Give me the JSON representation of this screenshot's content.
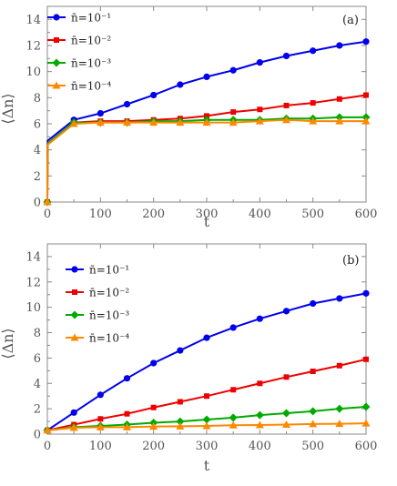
{
  "chart_data": [
    {
      "type": "line",
      "panel_label": "(a)",
      "xlabel": "t",
      "ylabel": "⟨Δn⟩",
      "xlim": [
        0,
        600
      ],
      "ylim": [
        0,
        15
      ],
      "xticks": [
        0,
        100,
        200,
        300,
        400,
        500,
        600
      ],
      "yticks": [
        0,
        2,
        4,
        6,
        8,
        10,
        12,
        14
      ],
      "grid": false,
      "legend": "top-left",
      "series": [
        {
          "name": "n̄=10⁻¹",
          "color": "#0000ee",
          "marker": "circle",
          "x": [
            0,
            0.5,
            50,
            100,
            150,
            200,
            250,
            300,
            350,
            400,
            450,
            500,
            550,
            600
          ],
          "y": [
            0,
            4.7,
            6.3,
            6.8,
            7.5,
            8.2,
            9.0,
            9.6,
            10.1,
            10.7,
            11.2,
            11.6,
            12.0,
            12.3
          ]
        },
        {
          "name": "n̄=10⁻²",
          "color": "#ee0000",
          "marker": "square",
          "x": [
            0,
            0.5,
            50,
            100,
            150,
            200,
            250,
            300,
            350,
            400,
            450,
            500,
            550,
            600
          ],
          "y": [
            0,
            4.5,
            6.1,
            6.2,
            6.2,
            6.3,
            6.4,
            6.6,
            6.9,
            7.1,
            7.4,
            7.6,
            7.9,
            8.2
          ]
        },
        {
          "name": "n̄=10⁻³",
          "color": "#00aa00",
          "marker": "diamond",
          "x": [
            0,
            0.5,
            50,
            100,
            150,
            200,
            250,
            300,
            350,
            400,
            450,
            500,
            550,
            600
          ],
          "y": [
            0,
            4.5,
            6.1,
            6.1,
            6.1,
            6.2,
            6.2,
            6.3,
            6.3,
            6.3,
            6.4,
            6.4,
            6.5,
            6.5
          ]
        },
        {
          "name": "n̄=10⁻⁴",
          "color": "#ff8800",
          "marker": "triangle",
          "x": [
            0,
            0.5,
            50,
            100,
            150,
            200,
            250,
            300,
            350,
            400,
            450,
            500,
            550,
            600
          ],
          "y": [
            0,
            4.4,
            6.0,
            6.1,
            6.1,
            6.1,
            6.1,
            6.1,
            6.1,
            6.2,
            6.3,
            6.2,
            6.2,
            6.2
          ]
        }
      ]
    },
    {
      "type": "line",
      "panel_label": "(b)",
      "xlabel": "t",
      "ylabel": "⟨Δn⟩",
      "xlim": [
        0,
        600
      ],
      "ylim": [
        0,
        15
      ],
      "xticks": [
        0,
        100,
        200,
        300,
        400,
        500,
        600
      ],
      "yticks": [
        0,
        2,
        4,
        6,
        8,
        10,
        12,
        14
      ],
      "grid": false,
      "legend": "top-left",
      "series": [
        {
          "name": "n̄=10⁻¹",
          "color": "#0000ee",
          "marker": "circle",
          "x": [
            0,
            50,
            100,
            150,
            200,
            250,
            300,
            350,
            400,
            450,
            500,
            550,
            600
          ],
          "y": [
            0.3,
            1.7,
            3.1,
            4.4,
            5.6,
            6.6,
            7.6,
            8.4,
            9.1,
            9.7,
            10.3,
            10.7,
            11.1
          ]
        },
        {
          "name": "n̄=10⁻²",
          "color": "#ee0000",
          "marker": "square",
          "x": [
            0,
            50,
            100,
            150,
            200,
            250,
            300,
            350,
            400,
            450,
            500,
            550,
            600
          ],
          "y": [
            0.3,
            0.75,
            1.2,
            1.6,
            2.1,
            2.55,
            3.0,
            3.5,
            4.0,
            4.5,
            4.95,
            5.4,
            5.9
          ]
        },
        {
          "name": "n̄=10⁻³",
          "color": "#00aa00",
          "marker": "diamond",
          "x": [
            0,
            50,
            100,
            150,
            200,
            250,
            300,
            350,
            400,
            450,
            500,
            550,
            600
          ],
          "y": [
            0.3,
            0.55,
            0.65,
            0.75,
            0.9,
            1.0,
            1.15,
            1.3,
            1.5,
            1.65,
            1.8,
            2.0,
            2.15
          ]
        },
        {
          "name": "n̄=10⁻⁴",
          "color": "#ff8800",
          "marker": "triangle",
          "x": [
            0,
            50,
            100,
            150,
            200,
            250,
            300,
            350,
            400,
            450,
            500,
            550,
            600
          ],
          "y": [
            0.3,
            0.5,
            0.55,
            0.55,
            0.6,
            0.62,
            0.65,
            0.7,
            0.72,
            0.75,
            0.8,
            0.82,
            0.85
          ]
        }
      ]
    }
  ]
}
